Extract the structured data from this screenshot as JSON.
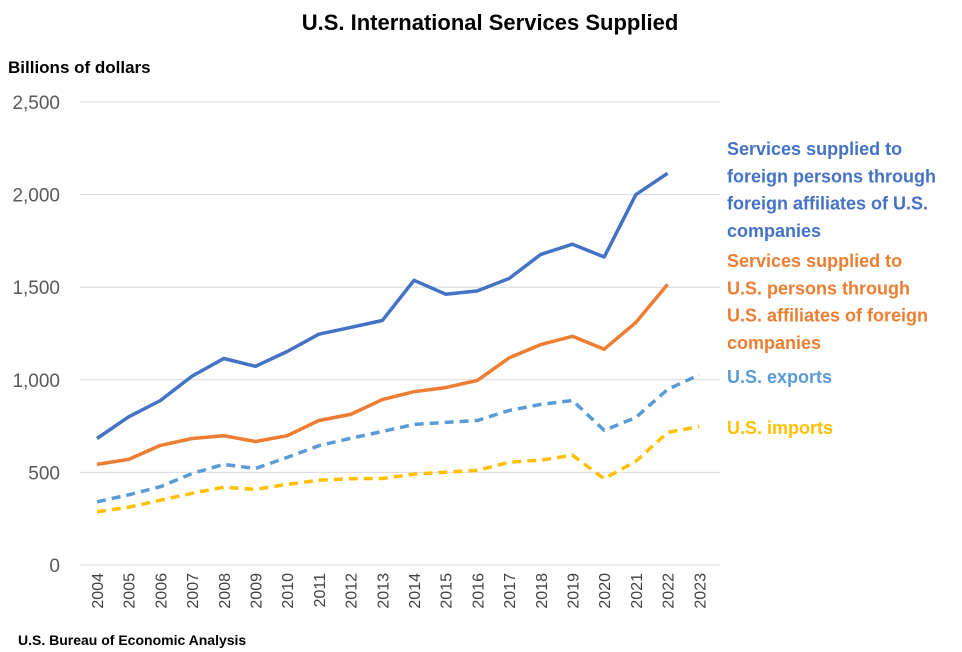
{
  "chart_data": {
    "type": "line",
    "title": "U.S. International Services Supplied",
    "ylabel": "Billions of dollars",
    "source": "U.S. Bureau of Economic Analysis",
    "ylim": [
      0,
      2500
    ],
    "y_ticks": [
      "0",
      "500",
      "1,000",
      "1,500",
      "2,000",
      "2,500"
    ],
    "y_tick_values": [
      0,
      500,
      1000,
      1500,
      2000,
      2500
    ],
    "grid": true,
    "categories": [
      "2004",
      "2005",
      "2006",
      "2007",
      "2008",
      "2009",
      "2010",
      "2011",
      "2012",
      "2013",
      "2014",
      "2015",
      "2016",
      "2017",
      "2018",
      "2019",
      "2020",
      "2021",
      "2022",
      "2023"
    ],
    "series": [
      {
        "name": "Services supplied to foreign persons through foreign affiliates of U.S. companies",
        "label_lines": [
          "Services supplied to",
          "foreign persons through",
          "foreign affiliates of U.S.",
          "companies"
        ],
        "color": "#4472C4",
        "dashed": false,
        "values": [
          683,
          800,
          888,
          1020,
          1115,
          1073,
          1153,
          1246,
          1283,
          1320,
          1537,
          1462,
          1480,
          1547,
          1677,
          1732,
          1663,
          2000,
          2115,
          null
        ]
      },
      {
        "name": "Services supplied to U.S. persons through U.S. affiliates of foreign companies",
        "label_lines": [
          "Services supplied to",
          "U.S. persons through",
          "U.S. affiliates of foreign",
          "companies"
        ],
        "color": "#ED7D31",
        "dashed": false,
        "values": [
          543,
          570,
          646,
          683,
          698,
          667,
          698,
          780,
          813,
          893,
          936,
          958,
          997,
          1118,
          1190,
          1235,
          1165,
          1310,
          1515,
          null
        ]
      },
      {
        "name": "U.S. exports",
        "label_lines": [
          "U.S. exports"
        ],
        "color": "#5B9BD5",
        "dashed": true,
        "values": [
          341,
          379,
          423,
          494,
          543,
          521,
          581,
          644,
          684,
          721,
          759,
          770,
          780,
          834,
          867,
          888,
          727,
          797,
          948,
          1027
        ]
      },
      {
        "name": "U.S. imports",
        "label_lines": [
          "U.S. imports"
        ],
        "color": "#FFC000",
        "dashed": true,
        "values": [
          287,
          312,
          350,
          387,
          420,
          408,
          435,
          458,
          466,
          467,
          491,
          501,
          511,
          555,
          566,
          593,
          466,
          560,
          716,
          748
        ]
      }
    ]
  }
}
